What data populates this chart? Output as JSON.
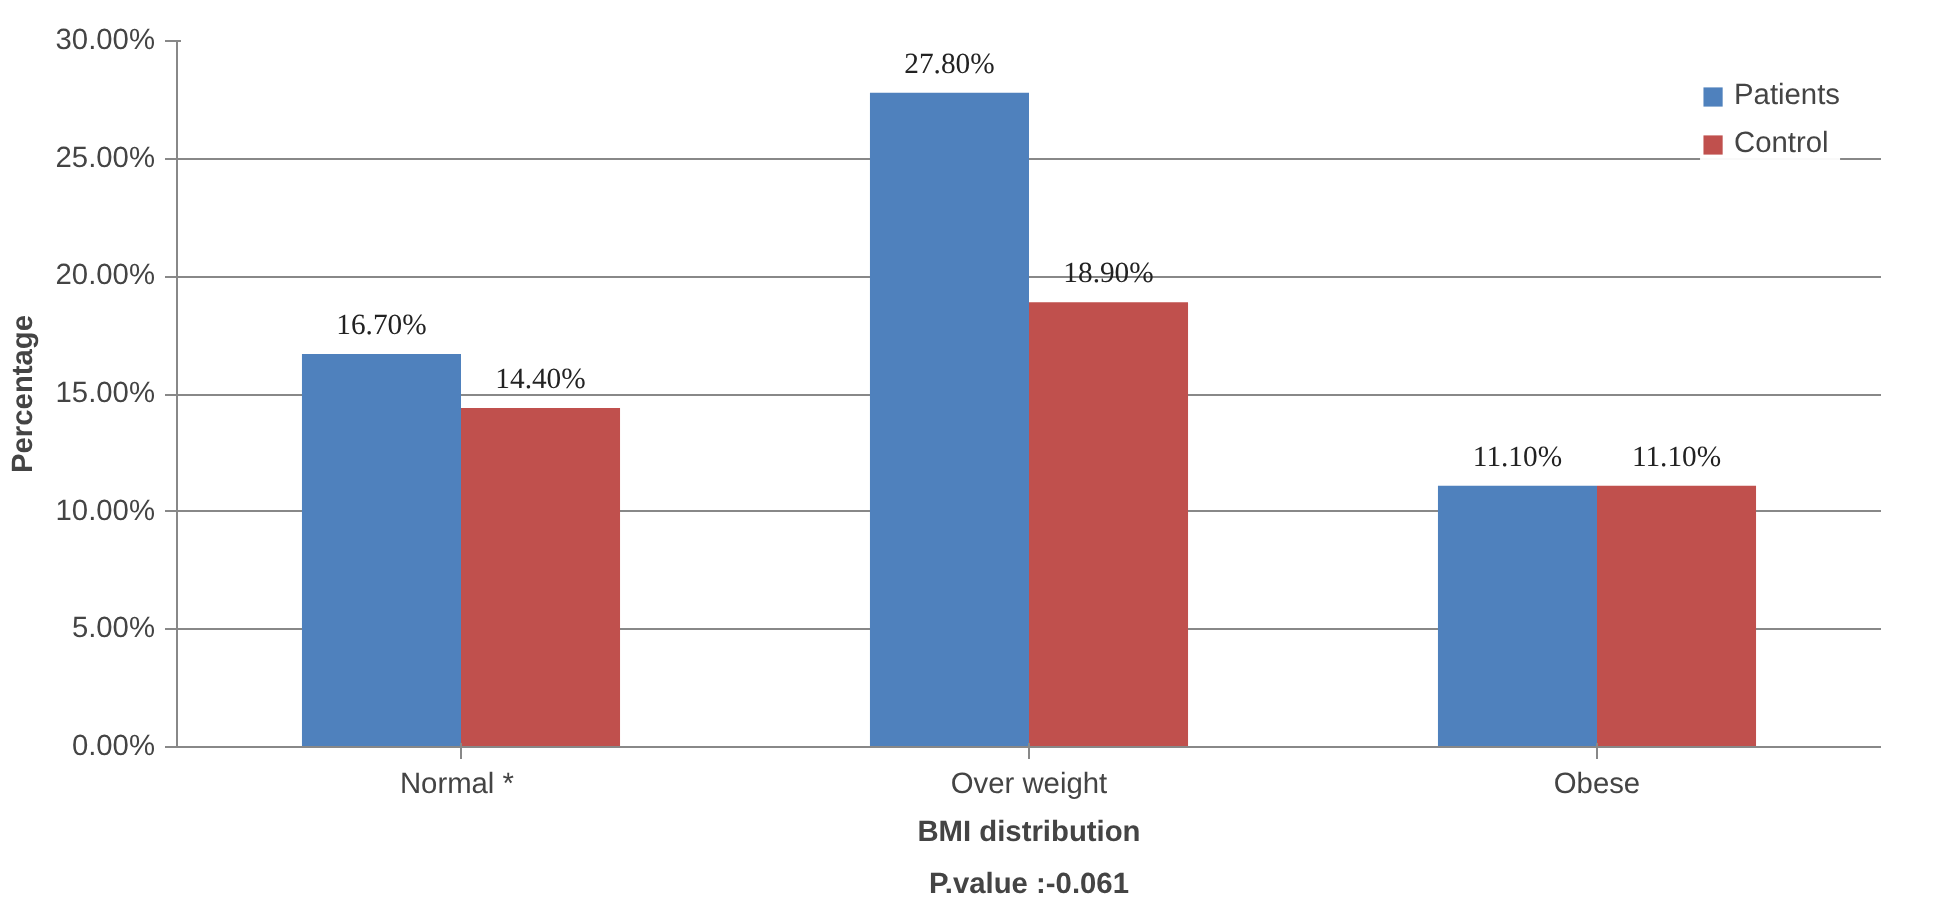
{
  "chart_data": {
    "type": "bar",
    "xlabel": "BMI distribution",
    "ylabel": "Percentage",
    "annotations": [
      "P.value :-0.061"
    ],
    "categories": [
      "Normal  *",
      "Over weight",
      "Obese"
    ],
    "series": [
      {
        "name": "Patients",
        "color": "#4f81bd",
        "values": [
          16.7,
          27.8,
          11.1
        ],
        "value_labels": [
          "16.70%",
          "27.80%",
          "11.10%"
        ]
      },
      {
        "name": "Control",
        "color": "#c0504d",
        "values": [
          14.4,
          18.9,
          11.1
        ],
        "value_labels": [
          "14.40%",
          "18.90%",
          "11.10%"
        ]
      }
    ],
    "ylim": [
      0,
      30
    ],
    "yticks": [
      {
        "value": 0,
        "label": "0.00%"
      },
      {
        "value": 5,
        "label": "5.00%"
      },
      {
        "value": 10,
        "label": "10.00%"
      },
      {
        "value": 15,
        "label": "15.00%"
      },
      {
        "value": 20,
        "label": "20.00%"
      },
      {
        "value": 25,
        "label": "25.00%"
      },
      {
        "value": 30,
        "label": "30.00%"
      }
    ],
    "grid": "y",
    "legend": "top right"
  }
}
